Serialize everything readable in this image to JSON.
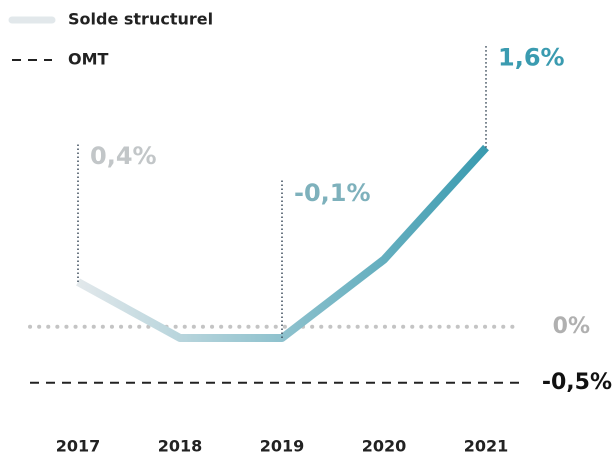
{
  "chart_data": {
    "type": "line",
    "categories": [
      "2017",
      "2018",
      "2019",
      "2020",
      "2021"
    ],
    "series": [
      {
        "name": "Solde structurel",
        "color": "#3a9bb0",
        "color_start": "#e2e8eb",
        "values": [
          0.4,
          -0.1,
          -0.1,
          0.6,
          1.6
        ],
        "value_labels": [
          "0,4%",
          null,
          "-0,1%",
          null,
          "1,6%"
        ]
      }
    ],
    "reference_lines": [
      {
        "value": 0,
        "label": "0%",
        "style": "dotted",
        "color": "#c4c4c4"
      },
      {
        "name": "OMT",
        "value": -0.5,
        "label": "-0,5%",
        "style": "dashed",
        "color": "#222222"
      }
    ],
    "ylim": [
      -0.7,
      2.6
    ]
  }
}
